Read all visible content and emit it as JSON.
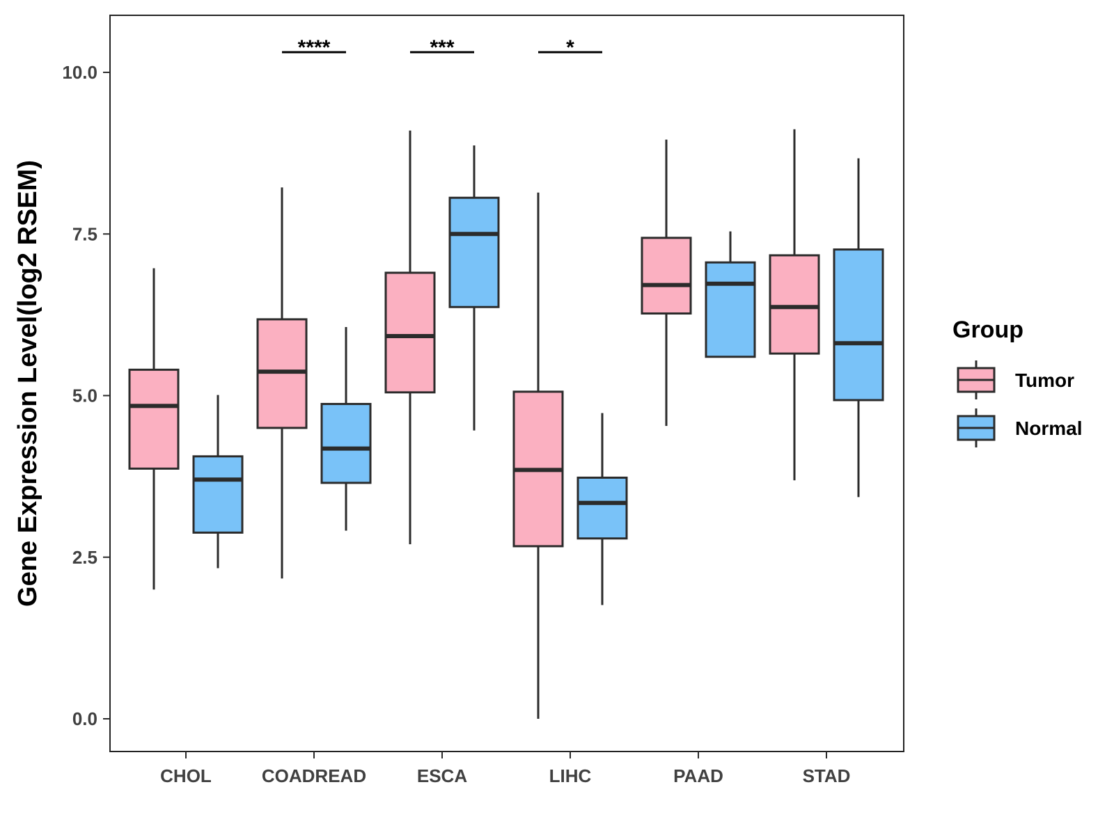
{
  "chart_data": {
    "type": "box",
    "title": "",
    "xlabel": "",
    "ylabel": "Gene Expression Level(log2 RSEM)",
    "ylim": [
      -0.5,
      10.85
    ],
    "yticks": [
      0.0,
      2.5,
      5.0,
      7.5,
      10.0
    ],
    "ytick_labels": [
      "0.0",
      "2.5",
      "5.0",
      "7.5",
      "10.0"
    ],
    "categories": [
      "CHOL",
      "COADREAD",
      "ESCA",
      "LIHC",
      "PAAD",
      "STAD"
    ],
    "legend": {
      "title": "Group",
      "position": "right",
      "entries": [
        {
          "name": "Tumor",
          "color": "#FBB0C1"
        },
        {
          "name": "Normal",
          "color": "#79C2F8"
        }
      ]
    },
    "series": [
      {
        "name": "Tumor",
        "color": "#FBB0C1",
        "boxes": [
          {
            "min": 2.0,
            "q1": 3.87,
            "median": 4.84,
            "q3": 5.4,
            "max": 6.97
          },
          {
            "min": 2.17,
            "q1": 4.5,
            "median": 5.37,
            "q3": 6.18,
            "max": 8.22
          },
          {
            "min": 2.7,
            "q1": 5.05,
            "median": 5.92,
            "q3": 6.9,
            "max": 9.1
          },
          {
            "min": 0.0,
            "q1": 2.67,
            "median": 3.85,
            "q3": 5.06,
            "max": 8.14
          },
          {
            "min": 4.53,
            "q1": 6.27,
            "median": 6.71,
            "q3": 7.44,
            "max": 8.96
          },
          {
            "min": 3.69,
            "q1": 5.65,
            "median": 6.37,
            "q3": 7.17,
            "max": 9.12
          }
        ]
      },
      {
        "name": "Normal",
        "color": "#79C2F8",
        "boxes": [
          {
            "min": 2.33,
            "q1": 2.88,
            "median": 3.7,
            "q3": 4.06,
            "max": 5.01
          },
          {
            "min": 2.91,
            "q1": 3.65,
            "median": 4.18,
            "q3": 4.87,
            "max": 6.06
          },
          {
            "min": 4.46,
            "q1": 6.37,
            "median": 7.5,
            "q3": 8.06,
            "max": 8.87
          },
          {
            "min": 1.76,
            "q1": 2.79,
            "median": 3.34,
            "q3": 3.73,
            "max": 4.73
          },
          {
            "min": null,
            "q1": 5.6,
            "median": 6.73,
            "q3": 7.06,
            "max": 7.54
          },
          {
            "min": 3.43,
            "q1": 4.93,
            "median": 5.81,
            "q3": 7.26,
            "max": 8.67
          }
        ]
      }
    ],
    "annotations": [
      {
        "category": "COADREAD",
        "label": "****"
      },
      {
        "category": "ESCA",
        "label": "***"
      },
      {
        "category": "LIHC",
        "label": "*"
      }
    ]
  }
}
